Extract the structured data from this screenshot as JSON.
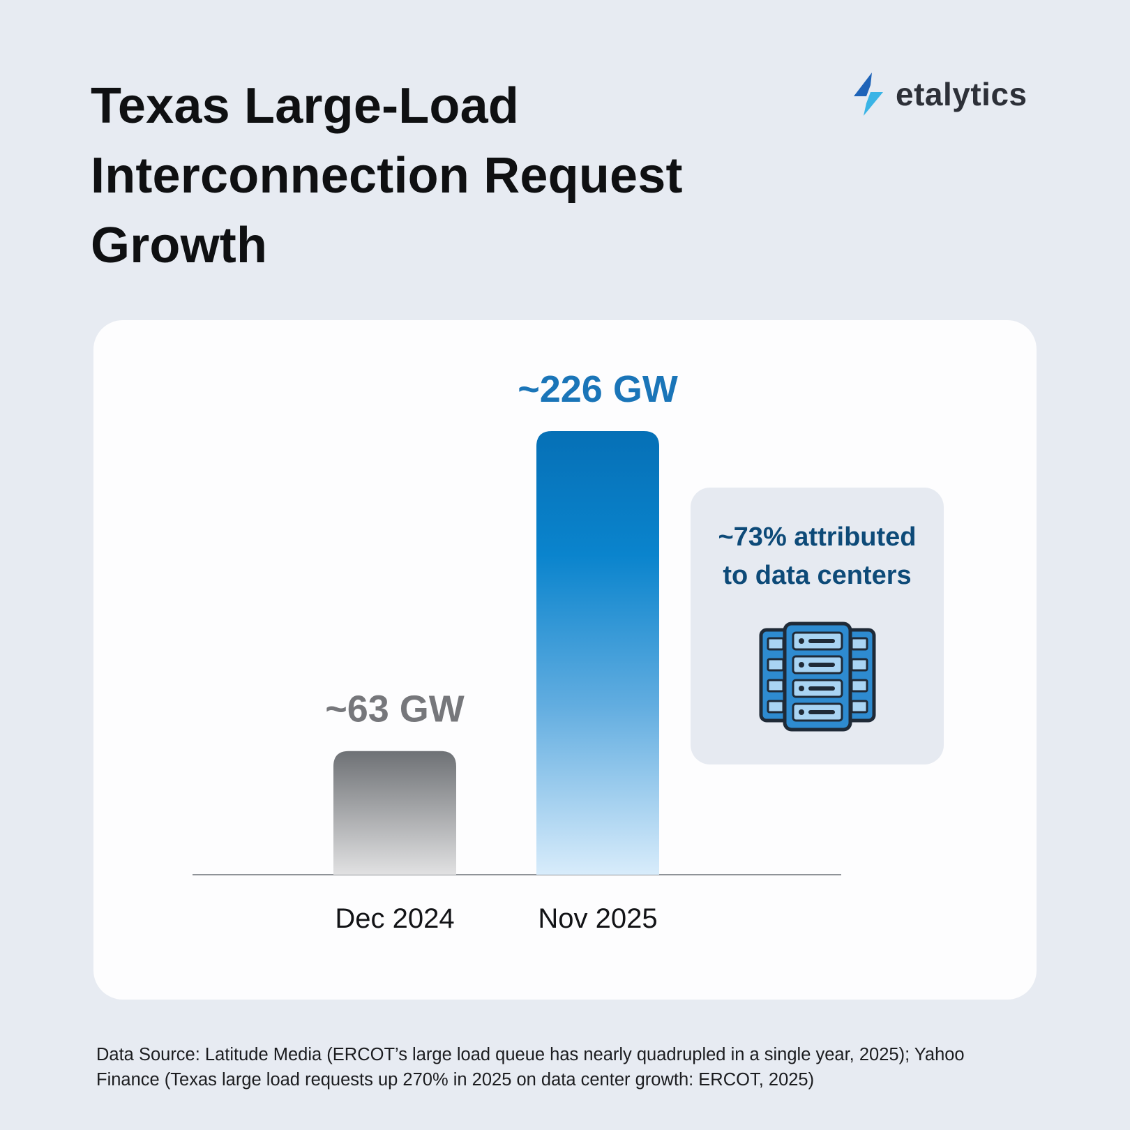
{
  "header": {
    "title": "Texas Large-Load Interconnection Request Growth",
    "logo_text": "etalytics"
  },
  "chart_data": {
    "type": "bar",
    "title": "Texas Large-Load Interconnection Request Growth",
    "categories": [
      "Dec 2024",
      "Nov 2025"
    ],
    "values": [
      63,
      226
    ],
    "unit": "GW",
    "value_labels": [
      "~63 GW",
      "~226 GW"
    ],
    "xlabel": "",
    "ylabel": "",
    "ylim": [
      0,
      226
    ],
    "grid": false,
    "legend": "none",
    "colors": [
      "#6e7175",
      "#0879c2"
    ],
    "label_colors": [
      "#76777b",
      "#1a75b8"
    ],
    "annotations": [
      {
        "text": "~73% attributed to data centers",
        "target": "Nov 2025",
        "icon": "server-rack-icon"
      }
    ]
  },
  "callout": {
    "text": "~73% attributed to data centers",
    "icon": "server-rack-icon"
  },
  "footer": {
    "source": "Data Source: Latitude Media (ERCOT’s large load queue has nearly quadrupled in a single year, 2025); Yahoo Finance (Texas large load requests up 270% in 2025 on data center growth: ERCOT, 2025)"
  },
  "colors": {
    "background": "#e7ebf2",
    "card": "#fdfdfe",
    "accent": "#0879c2",
    "callout_bg": "#e6eaf1",
    "callout_text": "#0d4a78",
    "server_blue": "#2e8bd0",
    "server_outline": "#1f2a37"
  }
}
